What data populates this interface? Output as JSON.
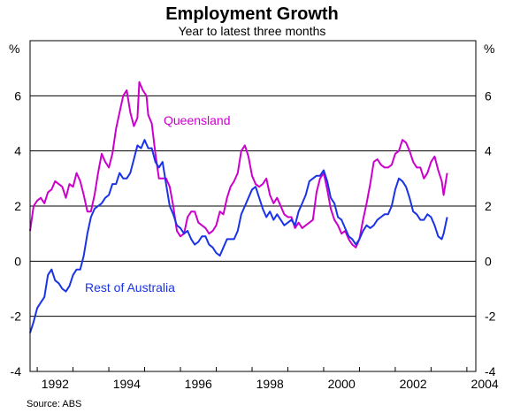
{
  "chart_data": {
    "type": "line",
    "title": "Employment Growth",
    "subtitle": "Year to latest three months",
    "y_unit_left": "%",
    "y_unit_right": "%",
    "ylim": [
      -4,
      8
    ],
    "y_ticks": [
      -4,
      -2,
      0,
      2,
      4,
      6
    ],
    "xlim": [
      1991.8,
      2004.25
    ],
    "x_ticks": [
      {
        "value": 1992,
        "label": "1992"
      },
      {
        "value": 1994,
        "label": "1994"
      },
      {
        "value": 1996,
        "label": "1996"
      },
      {
        "value": 1998,
        "label": "1998"
      },
      {
        "value": 2000,
        "label": "2000"
      },
      {
        "value": 2002,
        "label": "2002"
      },
      {
        "value": 2004,
        "label": "2004"
      }
    ],
    "grid": "horizontal",
    "source": "Source:  ABS",
    "series": [
      {
        "name": "Queensland",
        "color": "#cc00cc",
        "points": [
          [
            1991.8,
            1.1
          ],
          [
            1991.9,
            2.0
          ],
          [
            1992.0,
            2.2
          ],
          [
            1992.1,
            2.3
          ],
          [
            1992.2,
            2.1
          ],
          [
            1992.3,
            2.5
          ],
          [
            1992.4,
            2.6
          ],
          [
            1992.5,
            2.9
          ],
          [
            1992.6,
            2.8
          ],
          [
            1992.7,
            2.7
          ],
          [
            1992.8,
            2.3
          ],
          [
            1992.9,
            2.8
          ],
          [
            1993.0,
            2.7
          ],
          [
            1993.1,
            3.2
          ],
          [
            1993.2,
            2.9
          ],
          [
            1993.3,
            2.4
          ],
          [
            1993.4,
            1.8
          ],
          [
            1993.5,
            1.8
          ],
          [
            1993.6,
            2.4
          ],
          [
            1993.7,
            3.2
          ],
          [
            1993.8,
            3.9
          ],
          [
            1993.9,
            3.6
          ],
          [
            1994.0,
            3.4
          ],
          [
            1994.1,
            3.9
          ],
          [
            1994.2,
            4.8
          ],
          [
            1994.3,
            5.4
          ],
          [
            1994.4,
            6.0
          ],
          [
            1994.5,
            6.2
          ],
          [
            1994.6,
            5.4
          ],
          [
            1994.7,
            4.9
          ],
          [
            1994.8,
            5.2
          ],
          [
            1994.85,
            6.5
          ],
          [
            1994.95,
            6.2
          ],
          [
            1995.05,
            6.0
          ],
          [
            1995.1,
            5.3
          ],
          [
            1995.2,
            5.0
          ],
          [
            1995.3,
            3.9
          ],
          [
            1995.4,
            3.0
          ],
          [
            1995.5,
            3.0
          ],
          [
            1995.6,
            3.0
          ],
          [
            1995.7,
            2.7
          ],
          [
            1995.8,
            2.0
          ],
          [
            1995.9,
            1.1
          ],
          [
            1996.0,
            0.9
          ],
          [
            1996.1,
            1.0
          ],
          [
            1996.2,
            1.6
          ],
          [
            1996.3,
            1.8
          ],
          [
            1996.4,
            1.8
          ],
          [
            1996.5,
            1.4
          ],
          [
            1996.6,
            1.3
          ],
          [
            1996.7,
            1.2
          ],
          [
            1996.8,
            1.0
          ],
          [
            1996.9,
            1.1
          ],
          [
            1997.0,
            1.3
          ],
          [
            1997.1,
            1.8
          ],
          [
            1997.2,
            1.7
          ],
          [
            1997.3,
            2.3
          ],
          [
            1997.4,
            2.7
          ],
          [
            1997.5,
            2.9
          ],
          [
            1997.6,
            3.2
          ],
          [
            1997.7,
            4.0
          ],
          [
            1997.8,
            4.2
          ],
          [
            1997.9,
            3.8
          ],
          [
            1998.0,
            3.1
          ],
          [
            1998.1,
            2.8
          ],
          [
            1998.2,
            2.7
          ],
          [
            1998.3,
            2.8
          ],
          [
            1998.4,
            3.0
          ],
          [
            1998.5,
            2.4
          ],
          [
            1998.6,
            2.1
          ],
          [
            1998.7,
            2.3
          ],
          [
            1998.8,
            2.0
          ],
          [
            1998.9,
            1.7
          ],
          [
            1999.0,
            1.6
          ],
          [
            1999.1,
            1.6
          ],
          [
            1999.2,
            1.2
          ],
          [
            1999.3,
            1.4
          ],
          [
            1999.4,
            1.2
          ],
          [
            1999.5,
            1.3
          ],
          [
            1999.6,
            1.4
          ],
          [
            1999.7,
            1.5
          ],
          [
            1999.8,
            2.5
          ],
          [
            1999.9,
            3.0
          ],
          [
            2000.0,
            3.2
          ],
          [
            2000.1,
            2.6
          ],
          [
            2000.2,
            1.9
          ],
          [
            2000.3,
            1.5
          ],
          [
            2000.4,
            1.3
          ],
          [
            2000.5,
            1.0
          ],
          [
            2000.6,
            1.1
          ],
          [
            2000.7,
            0.8
          ],
          [
            2000.8,
            0.6
          ],
          [
            2000.9,
            0.5
          ],
          [
            2001.0,
            0.8
          ],
          [
            2001.1,
            1.5
          ],
          [
            2001.2,
            2.1
          ],
          [
            2001.3,
            2.8
          ],
          [
            2001.4,
            3.6
          ],
          [
            2001.5,
            3.7
          ],
          [
            2001.6,
            3.5
          ],
          [
            2001.7,
            3.4
          ],
          [
            2001.8,
            3.4
          ],
          [
            2001.9,
            3.5
          ],
          [
            2002.0,
            3.9
          ],
          [
            2002.1,
            4.0
          ],
          [
            2002.2,
            4.4
          ],
          [
            2002.3,
            4.3
          ],
          [
            2002.4,
            4.0
          ],
          [
            2002.5,
            3.6
          ],
          [
            2002.6,
            3.4
          ],
          [
            2002.7,
            3.4
          ],
          [
            2002.8,
            3.0
          ],
          [
            2002.9,
            3.2
          ],
          [
            2003.0,
            3.6
          ],
          [
            2003.1,
            3.8
          ],
          [
            2003.2,
            3.3
          ],
          [
            2003.3,
            2.9
          ],
          [
            2003.35,
            2.4
          ],
          [
            2003.45,
            3.2
          ]
        ]
      },
      {
        "name": "Rest of Australia",
        "color": "#1a33e6",
        "points": [
          [
            1991.8,
            -2.6
          ],
          [
            1991.9,
            -2.2
          ],
          [
            1992.0,
            -1.7
          ],
          [
            1992.1,
            -1.5
          ],
          [
            1992.2,
            -1.3
          ],
          [
            1992.3,
            -0.5
          ],
          [
            1992.4,
            -0.3
          ],
          [
            1992.5,
            -0.7
          ],
          [
            1992.6,
            -0.8
          ],
          [
            1992.7,
            -1.0
          ],
          [
            1992.8,
            -1.1
          ],
          [
            1992.9,
            -0.9
          ],
          [
            1993.0,
            -0.5
          ],
          [
            1993.1,
            -0.3
          ],
          [
            1993.2,
            -0.3
          ],
          [
            1993.3,
            0.2
          ],
          [
            1993.4,
            1.0
          ],
          [
            1993.5,
            1.6
          ],
          [
            1993.6,
            1.9
          ],
          [
            1993.7,
            2.0
          ],
          [
            1993.8,
            2.1
          ],
          [
            1993.9,
            2.3
          ],
          [
            1994.0,
            2.4
          ],
          [
            1994.1,
            2.8
          ],
          [
            1994.2,
            2.8
          ],
          [
            1994.3,
            3.2
          ],
          [
            1994.4,
            3.0
          ],
          [
            1994.5,
            3.0
          ],
          [
            1994.6,
            3.2
          ],
          [
            1994.7,
            3.7
          ],
          [
            1994.8,
            4.2
          ],
          [
            1994.9,
            4.1
          ],
          [
            1995.0,
            4.4
          ],
          [
            1995.1,
            4.1
          ],
          [
            1995.2,
            4.1
          ],
          [
            1995.3,
            3.6
          ],
          [
            1995.4,
            3.4
          ],
          [
            1995.5,
            3.6
          ],
          [
            1995.6,
            2.8
          ],
          [
            1995.7,
            2.0
          ],
          [
            1995.8,
            1.7
          ],
          [
            1995.9,
            1.3
          ],
          [
            1996.0,
            1.2
          ],
          [
            1996.1,
            1.0
          ],
          [
            1996.2,
            1.1
          ],
          [
            1996.3,
            0.8
          ],
          [
            1996.4,
            0.6
          ],
          [
            1996.5,
            0.7
          ],
          [
            1996.6,
            0.9
          ],
          [
            1996.7,
            0.9
          ],
          [
            1996.8,
            0.6
          ],
          [
            1996.9,
            0.5
          ],
          [
            1997.0,
            0.3
          ],
          [
            1997.1,
            0.2
          ],
          [
            1997.2,
            0.5
          ],
          [
            1997.3,
            0.8
          ],
          [
            1997.4,
            0.8
          ],
          [
            1997.5,
            0.8
          ],
          [
            1997.6,
            1.1
          ],
          [
            1997.7,
            1.7
          ],
          [
            1997.8,
            2.0
          ],
          [
            1997.9,
            2.3
          ],
          [
            1998.0,
            2.6
          ],
          [
            1998.1,
            2.7
          ],
          [
            1998.2,
            2.3
          ],
          [
            1998.3,
            1.9
          ],
          [
            1998.4,
            1.6
          ],
          [
            1998.5,
            1.8
          ],
          [
            1998.6,
            1.5
          ],
          [
            1998.7,
            1.7
          ],
          [
            1998.8,
            1.5
          ],
          [
            1998.9,
            1.3
          ],
          [
            1999.0,
            1.4
          ],
          [
            1999.1,
            1.5
          ],
          [
            1999.2,
            1.3
          ],
          [
            1999.3,
            1.8
          ],
          [
            1999.4,
            2.1
          ],
          [
            1999.5,
            2.4
          ],
          [
            1999.6,
            2.9
          ],
          [
            1999.7,
            3.0
          ],
          [
            1999.8,
            3.1
          ],
          [
            1999.9,
            3.1
          ],
          [
            2000.0,
            3.3
          ],
          [
            2000.1,
            2.9
          ],
          [
            2000.2,
            2.3
          ],
          [
            2000.3,
            2.1
          ],
          [
            2000.4,
            1.6
          ],
          [
            2000.5,
            1.5
          ],
          [
            2000.6,
            1.2
          ],
          [
            2000.7,
            0.9
          ],
          [
            2000.8,
            0.8
          ],
          [
            2000.9,
            0.6
          ],
          [
            2001.0,
            0.8
          ],
          [
            2001.1,
            1.1
          ],
          [
            2001.2,
            1.3
          ],
          [
            2001.3,
            1.2
          ],
          [
            2001.4,
            1.3
          ],
          [
            2001.5,
            1.5
          ],
          [
            2001.6,
            1.6
          ],
          [
            2001.7,
            1.7
          ],
          [
            2001.8,
            1.7
          ],
          [
            2001.9,
            2.0
          ],
          [
            2002.0,
            2.6
          ],
          [
            2002.1,
            3.0
          ],
          [
            2002.2,
            2.9
          ],
          [
            2002.3,
            2.7
          ],
          [
            2002.4,
            2.3
          ],
          [
            2002.5,
            1.8
          ],
          [
            2002.6,
            1.7
          ],
          [
            2002.7,
            1.5
          ],
          [
            2002.8,
            1.5
          ],
          [
            2002.9,
            1.7
          ],
          [
            2003.0,
            1.6
          ],
          [
            2003.1,
            1.3
          ],
          [
            2003.2,
            0.9
          ],
          [
            2003.3,
            0.8
          ],
          [
            2003.35,
            1.0
          ],
          [
            2003.45,
            1.6
          ]
        ]
      }
    ]
  }
}
